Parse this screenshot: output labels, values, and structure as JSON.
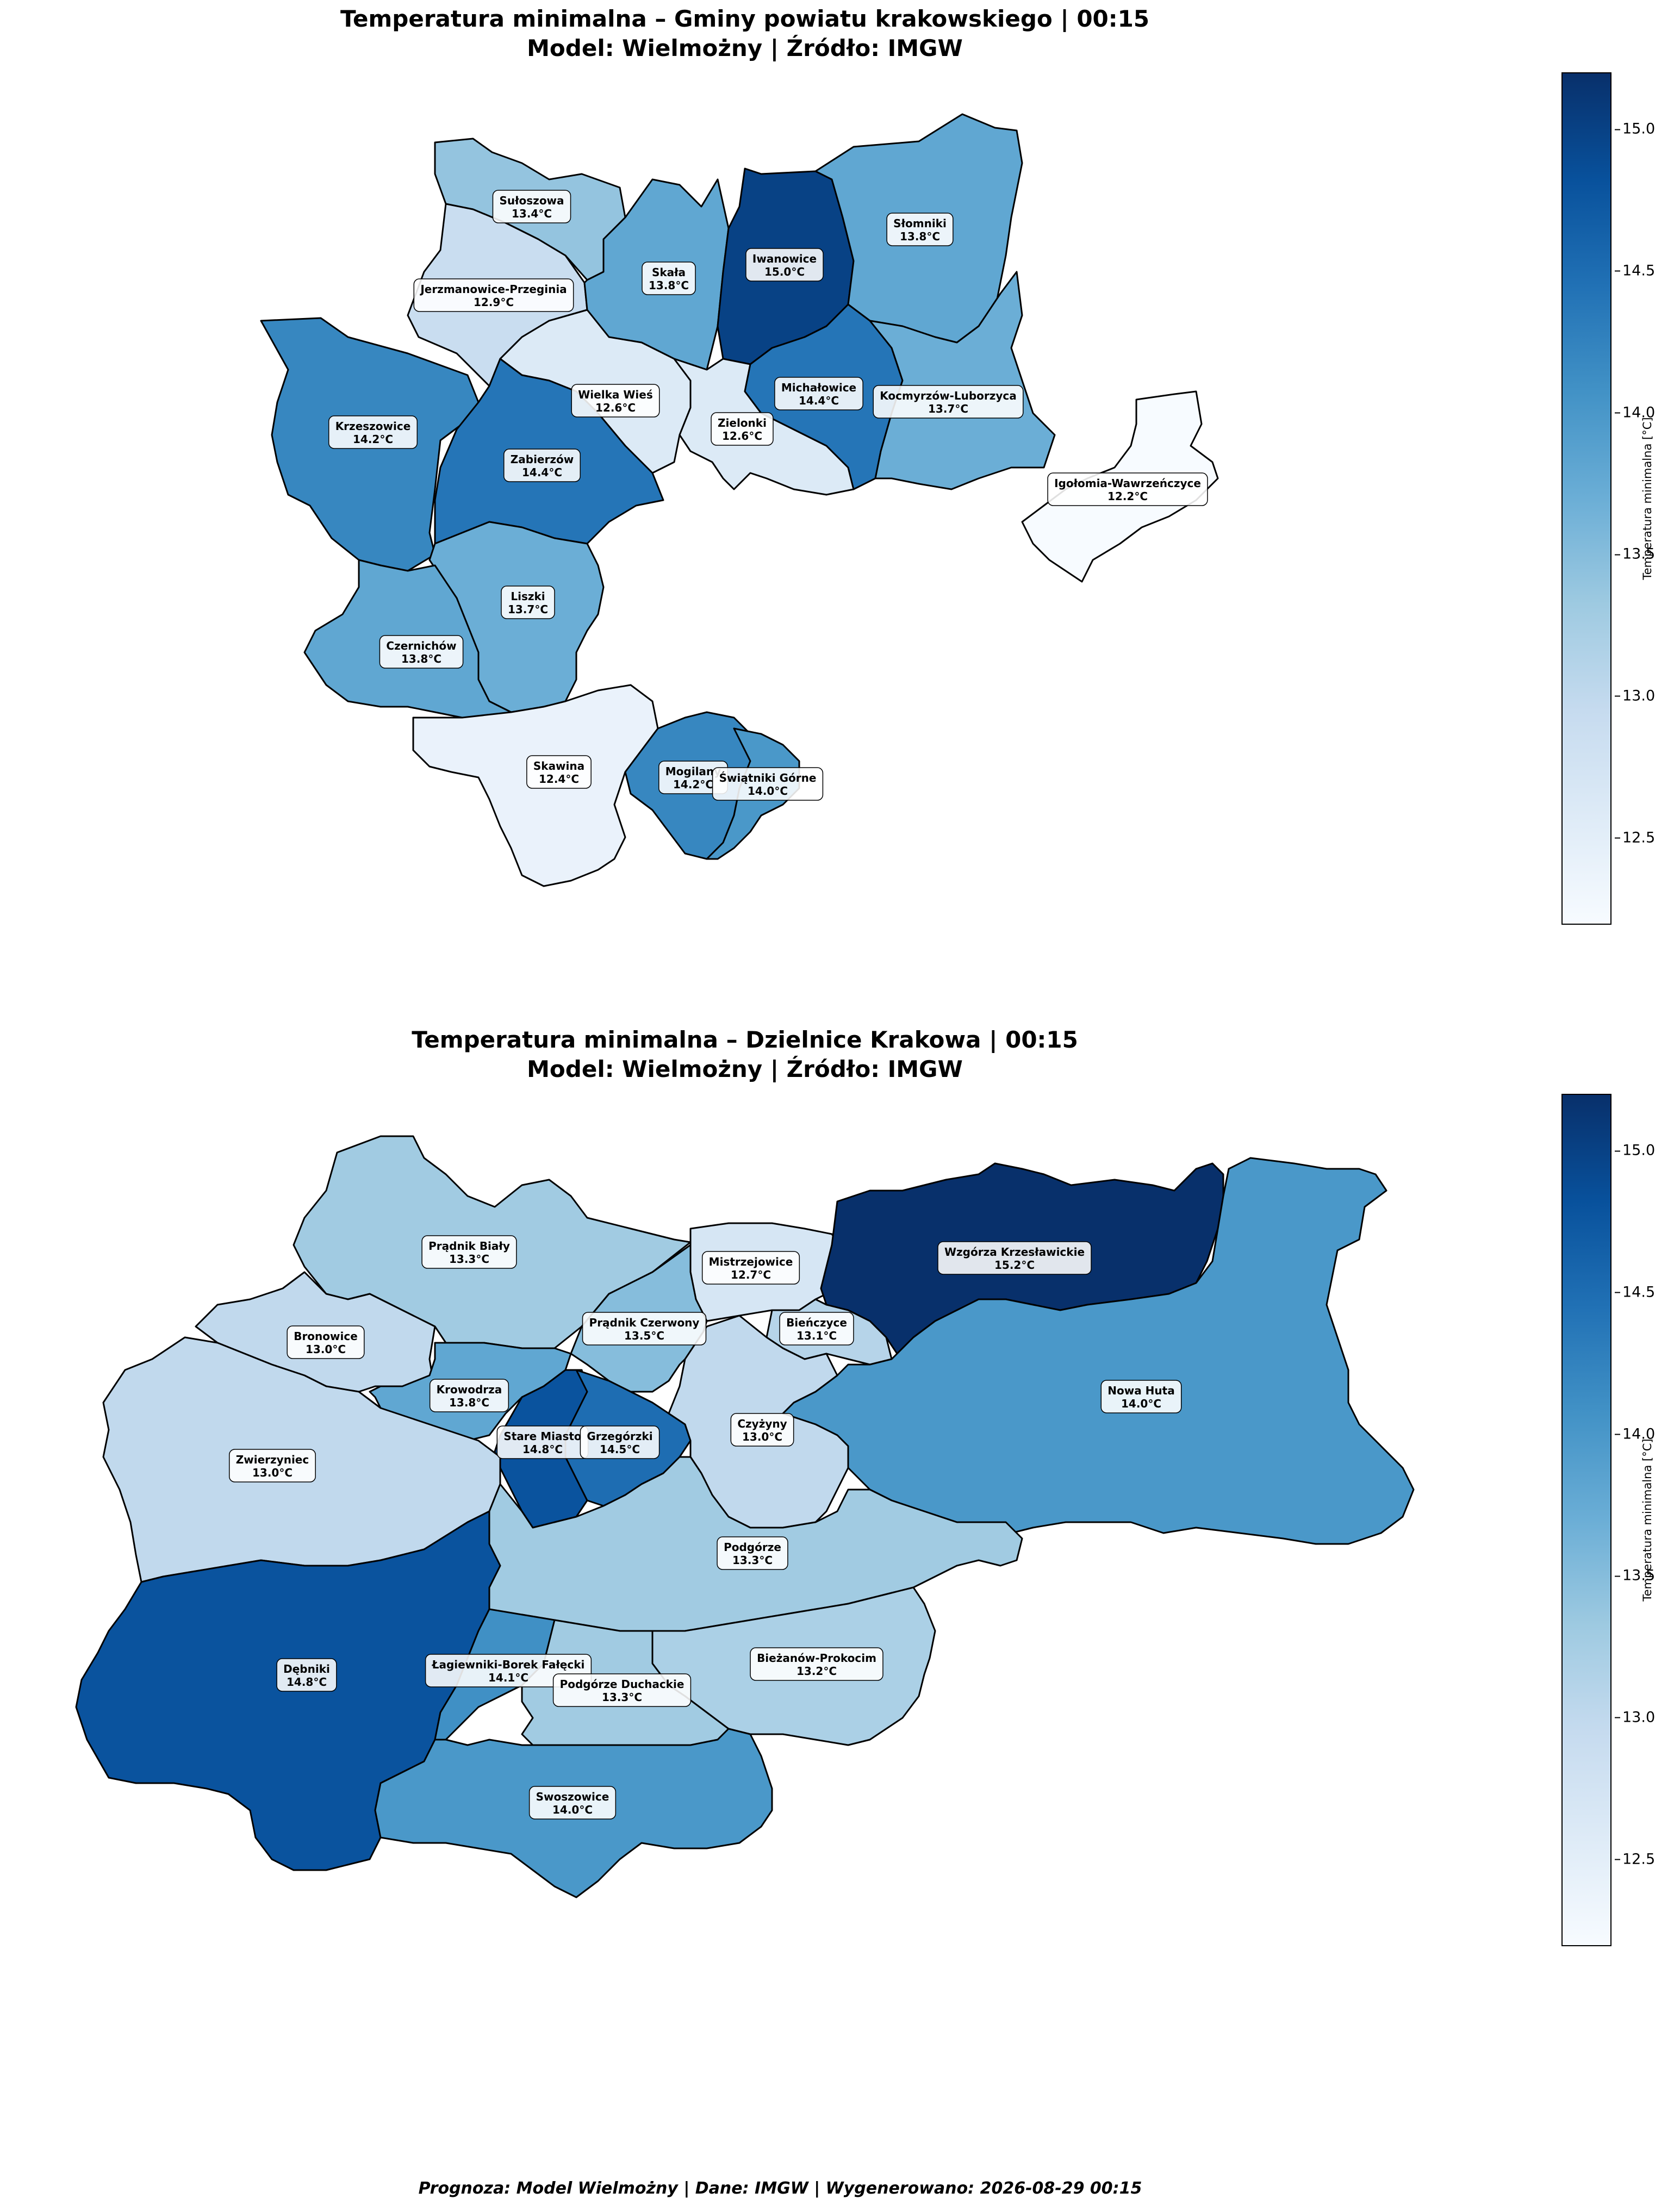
{
  "colormap": {
    "name": "Blues",
    "stops": [
      "#f7fbff",
      "#deebf7",
      "#c6dbef",
      "#9ecae1",
      "#6baed6",
      "#4292c6",
      "#2171b5",
      "#08519c",
      "#08306b"
    ],
    "vmin": 12.2,
    "vmax": 15.2
  },
  "unit": "°C",
  "top_map": {
    "title_line1": "Temperatura minimalna – Gminy powiatu krakowskiego | 00:15",
    "title_line2": "Model: Wielmożny | Źródło: IMGW",
    "colorbar_label": "Temperatura minimalna [°C]",
    "colorbar_ticks": [
      "15.0",
      "14.5",
      "14.0",
      "13.5",
      "13.0",
      "12.5"
    ],
    "regions": [
      {
        "name": "Sułoszowa",
        "value": "13.4°C",
        "temp": 13.4
      },
      {
        "name": "Jerzmanowice-Przeginia",
        "value": "12.9°C",
        "temp": 12.9
      },
      {
        "name": "Skała",
        "value": "13.8°C",
        "temp": 13.8
      },
      {
        "name": "Iwanowice",
        "value": "15.0°C",
        "temp": 15.0
      },
      {
        "name": "Słomniki",
        "value": "13.8°C",
        "temp": 13.8
      },
      {
        "name": "Krzeszowice",
        "value": "14.2°C",
        "temp": 14.2
      },
      {
        "name": "Wielka Wieś",
        "value": "12.6°C",
        "temp": 12.6
      },
      {
        "name": "Zabierzów",
        "value": "14.4°C",
        "temp": 14.4
      },
      {
        "name": "Zielonki",
        "value": "12.6°C",
        "temp": 12.6
      },
      {
        "name": "Michałowice",
        "value": "14.4°C",
        "temp": 14.4
      },
      {
        "name": "Kocmyrzów-Luborzyca",
        "value": "13.7°C",
        "temp": 13.7
      },
      {
        "name": "Igołomia-Wawrzeńczyce",
        "value": "12.2°C",
        "temp": 12.2
      },
      {
        "name": "Liszki",
        "value": "13.7°C",
        "temp": 13.7
      },
      {
        "name": "Czernichów",
        "value": "13.8°C",
        "temp": 13.8
      },
      {
        "name": "Skawina",
        "value": "12.4°C",
        "temp": 12.4
      },
      {
        "name": "Mogilany",
        "value": "14.2°C",
        "temp": 14.2
      },
      {
        "name": "Świątniki Górne",
        "value": "14.0°C",
        "temp": 14.0
      }
    ]
  },
  "bottom_map": {
    "title_line1": "Temperatura minimalna – Dzielnice Krakowa | 00:15",
    "title_line2": "Model: Wielmożny | Źródło: IMGW",
    "colorbar_label": "Temperatura minimalna [°C]",
    "colorbar_ticks": [
      "15.0",
      "14.5",
      "14.0",
      "13.5",
      "13.0",
      "12.5"
    ],
    "regions": [
      {
        "name": "Prądnik Biały",
        "value": "13.3°C",
        "temp": 13.3
      },
      {
        "name": "Bronowice",
        "value": "13.0°C",
        "temp": 13.0
      },
      {
        "name": "Mistrzejowice",
        "value": "12.7°C",
        "temp": 12.7
      },
      {
        "name": "Wzgórza Krzesławickie",
        "value": "15.2°C",
        "temp": 15.2
      },
      {
        "name": "Prądnik Czerwony",
        "value": "13.5°C",
        "temp": 13.5
      },
      {
        "name": "Bieńczyce",
        "value": "13.1°C",
        "temp": 13.1
      },
      {
        "name": "Krowodrza",
        "value": "13.8°C",
        "temp": 13.8
      },
      {
        "name": "Nowa Huta",
        "value": "14.0°C",
        "temp": 14.0
      },
      {
        "name": "Stare Miasto",
        "value": "14.8°C",
        "temp": 14.8
      },
      {
        "name": "Grzegórzki",
        "value": "14.5°C",
        "temp": 14.5
      },
      {
        "name": "Czyżyny",
        "value": "13.0°C",
        "temp": 13.0
      },
      {
        "name": "Zwierzyniec",
        "value": "13.0°C",
        "temp": 13.0
      },
      {
        "name": "Podgórze",
        "value": "13.3°C",
        "temp": 13.3
      },
      {
        "name": "Dębniki",
        "value": "14.8°C",
        "temp": 14.8
      },
      {
        "name": "Łagiewniki-Borek Fałęcki",
        "value": "14.1°C",
        "temp": 14.1
      },
      {
        "name": "Bieżanów-Prokocim",
        "value": "13.2°C",
        "temp": 13.2
      },
      {
        "name": "Podgórze Duchackie",
        "value": "13.3°C",
        "temp": 13.3
      },
      {
        "name": "Swoszowice",
        "value": "14.0°C",
        "temp": 14.0
      }
    ]
  },
  "footer": "Prognoza: Model Wielmożny | Dane: IMGW | Wygenerowano: 2026-08-29 00:15"
}
